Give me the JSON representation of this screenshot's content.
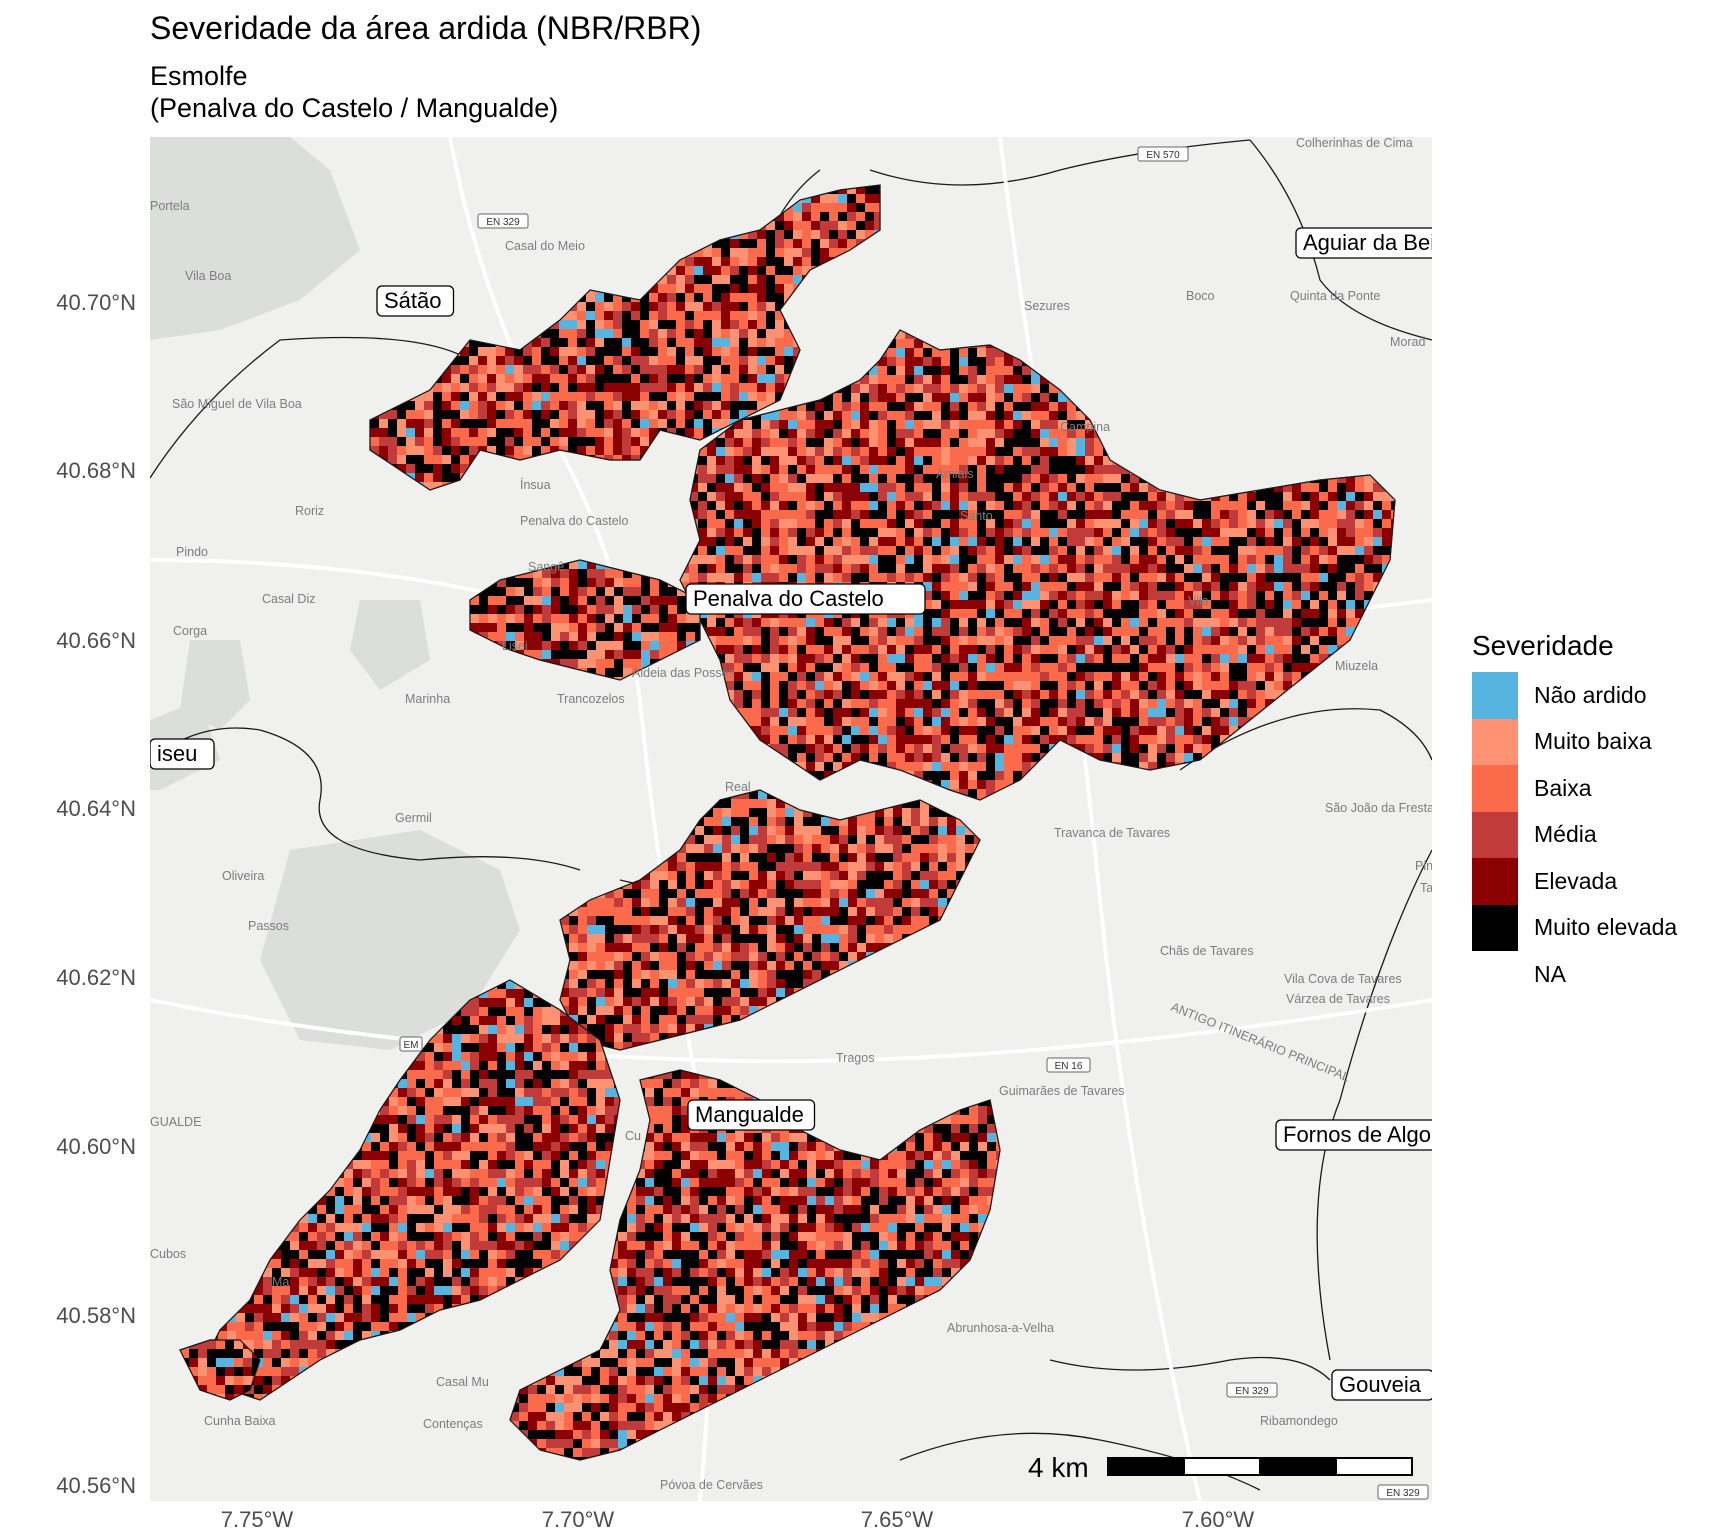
{
  "title": "Severidade da área ardida (NBR/RBR)",
  "subtitle_line1": "Esmolfe",
  "subtitle_line2": "(Penalva do Castelo / Mangualde)",
  "axes": {
    "y_ticks": [
      "40.70°N",
      "40.68°N",
      "40.66°N",
      "40.64°N",
      "40.62°N",
      "40.60°N",
      "40.58°N",
      "40.56°N"
    ],
    "x_ticks": [
      "7.75°W",
      "7.70°W",
      "7.65°W",
      "7.60°W"
    ]
  },
  "legend": {
    "title": "Severidade",
    "items": [
      {
        "label": "Não ardido",
        "color": "#56B4E0"
      },
      {
        "label": "Muito baixa",
        "color": "#FC9272"
      },
      {
        "label": "Baixa",
        "color": "#FB6A4A"
      },
      {
        "label": "Média",
        "color": "#C23B3B"
      },
      {
        "label": "Elevada",
        "color": "#8B0000"
      },
      {
        "label": "Muito elevada",
        "color": "#000000"
      },
      {
        "label": "NA",
        "color": "none"
      }
    ]
  },
  "place_labels": [
    "Sátão",
    "Aguiar da Bei",
    "Penalva do Castelo",
    "iseu",
    "Mangualde",
    "Fornos de Algo",
    "Gouveia"
  ],
  "basemap_labels": [
    "Portela",
    "Casal do Meio",
    "Vila Boa",
    "São Miguel de Vila Boa",
    "Ínsua",
    "Penalva do Castelo",
    "Roriz",
    "Pindo",
    "Sangê",
    "Casal Diz",
    "Corga",
    "Lisei",
    "Aldeia das Posses",
    "Marinha",
    "Trancozelos",
    "Germil",
    "Oliveira",
    "Passos",
    "Colherinhas de Cima",
    "Sezures",
    "Boco",
    "Quinta da Ponte",
    "Morad",
    "Campina",
    "Amiais",
    "Santo",
    "Vila",
    "Miuzela",
    "São João da Fresta",
    "Travanca de Tavares",
    "Pinhei",
    "Tav",
    "Chãs de Tavares",
    "Vila Cova de Tavares",
    "Várzea de Tavares",
    "ANTIGO ITINERÁRIO PRINCIPAL",
    "Tragos",
    "Guimarães de Tavares",
    "GUALDE",
    "Cubos",
    "Abrunhosa-a-Velha",
    "Casal Mu",
    "Cunha Baixa",
    "Contenças",
    "Ribamondego",
    "Póvoa de Cervães",
    "Real",
    "Cu",
    "Ma"
  ],
  "road_shields": [
    "EN 570",
    "EN 329",
    "EN 16",
    "EM",
    "EN 329",
    "EN 329"
  ],
  "scale_bar": {
    "label": "4 km"
  },
  "fire_colors": [
    "#56B4E0",
    "#FC9272",
    "#FB6A4A",
    "#C23B3B",
    "#8B0000",
    "#000000"
  ]
}
